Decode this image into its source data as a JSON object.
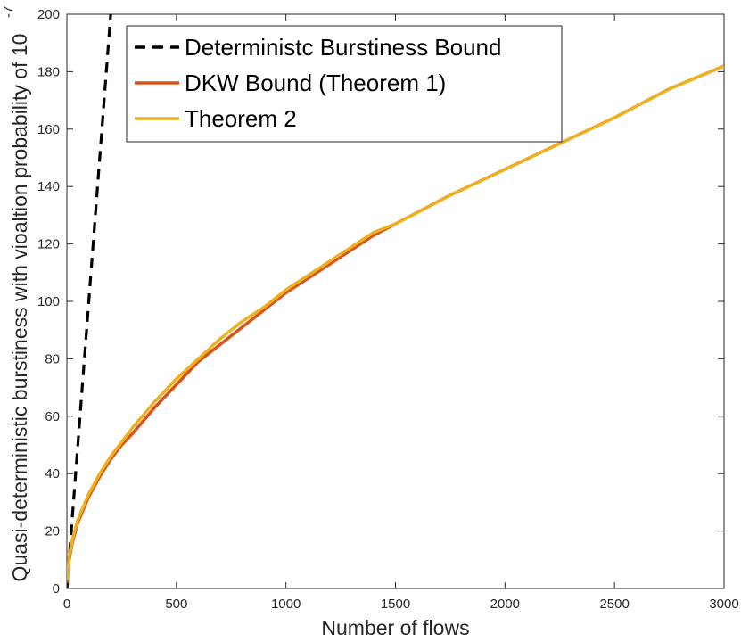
{
  "chart_data": {
    "type": "line",
    "xlabel": "Number of flows",
    "ylabel": "Quasi-deterministic burstiness with vioaltion probability of 10",
    "ylabel_exponent": "-7",
    "xlim": [
      0,
      3000
    ],
    "ylim": [
      0,
      200
    ],
    "x_ticks": [
      0,
      500,
      1000,
      1500,
      2000,
      2500,
      3000
    ],
    "y_ticks": [
      0,
      20,
      40,
      60,
      80,
      100,
      120,
      140,
      160,
      180,
      200
    ],
    "grid": false,
    "legend_position": "top-left",
    "series": [
      {
        "name": "Deterministc Burstiness Bound",
        "color": "#000000",
        "style": "dashed",
        "x": [
          0,
          200
        ],
        "y": [
          0,
          200
        ]
      },
      {
        "name": "DKW Bound (Theorem 1)",
        "color": "#d95319",
        "style": "solid",
        "x": [
          1,
          10,
          25,
          50,
          100,
          150,
          200,
          250,
          300,
          400,
          500,
          600,
          700,
          800,
          900,
          1000,
          1100,
          1200,
          1300,
          1400,
          1500,
          1750,
          2000,
          2250,
          2500,
          2750,
          3000
        ],
        "y": [
          2,
          10,
          16,
          23,
          32,
          39,
          45,
          50,
          54,
          63,
          71,
          79,
          85,
          91,
          97,
          103,
          108,
          113,
          118,
          123,
          127,
          137,
          146,
          155,
          164,
          174,
          182
        ]
      },
      {
        "name": "Theorem 2",
        "color": "#edb120",
        "style": "solid",
        "x": [
          1,
          10,
          25,
          50,
          100,
          150,
          200,
          250,
          300,
          400,
          500,
          600,
          700,
          800,
          900,
          1000,
          1100,
          1200,
          1300,
          1400,
          1500,
          1750,
          2000,
          2250,
          2500,
          2750,
          3000
        ],
        "y": [
          3,
          11,
          17,
          24,
          33,
          40,
          46,
          51,
          56,
          65,
          73,
          80,
          87,
          93,
          98,
          104,
          109,
          114,
          119,
          124,
          127,
          137,
          146,
          155,
          164,
          174,
          182
        ]
      }
    ]
  }
}
